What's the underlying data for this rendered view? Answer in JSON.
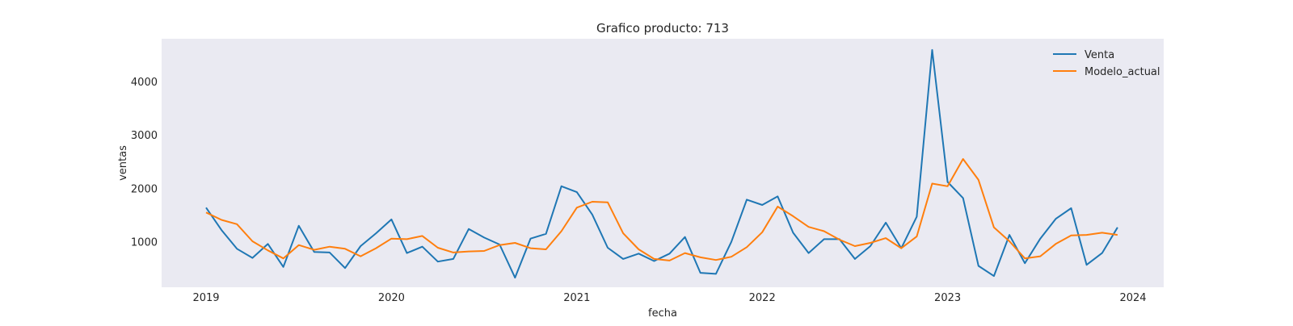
{
  "chart_data": {
    "type": "line",
    "title": "Grafico producto: 713",
    "xlabel": "fecha",
    "ylabel": "ventas",
    "x_ticks": [
      "2019",
      "2020",
      "2021",
      "2022",
      "2023",
      "2024"
    ],
    "y_ticks": [
      "1000",
      "2000",
      "3000",
      "4000"
    ],
    "grid": false,
    "legend_placement": "top-right",
    "plot_background": "#eaeaf2",
    "x": [
      "2019-01",
      "2019-02",
      "2019-03",
      "2019-04",
      "2019-05",
      "2019-06",
      "2019-07",
      "2019-08",
      "2019-09",
      "2019-10",
      "2019-11",
      "2019-12",
      "2020-01",
      "2020-02",
      "2020-03",
      "2020-04",
      "2020-05",
      "2020-06",
      "2020-07",
      "2020-08",
      "2020-09",
      "2020-10",
      "2020-11",
      "2020-12",
      "2021-01",
      "2021-02",
      "2021-03",
      "2021-04",
      "2021-05",
      "2021-06",
      "2021-07",
      "2021-08",
      "2021-09",
      "2021-10",
      "2021-11",
      "2021-12",
      "2022-01",
      "2022-02",
      "2022-03",
      "2022-04",
      "2022-05",
      "2022-06",
      "2022-07",
      "2022-08",
      "2022-09",
      "2022-10",
      "2022-11",
      "2022-12",
      "2023-01",
      "2023-02",
      "2023-03",
      "2023-04",
      "2023-05",
      "2023-06",
      "2023-07",
      "2023-08",
      "2023-09",
      "2023-10",
      "2023-11",
      "2023-12"
    ],
    "series": [
      {
        "name": "Venta",
        "color": "#1f77b4",
        "values": [
          1640,
          1220,
          870,
          700,
          960,
          530,
          1300,
          810,
          800,
          510,
          920,
          1160,
          1420,
          790,
          910,
          630,
          680,
          1240,
          1080,
          950,
          330,
          1060,
          1150,
          2040,
          1930,
          1510,
          890,
          680,
          780,
          640,
          780,
          1090,
          420,
          400,
          1000,
          1790,
          1690,
          1850,
          1170,
          790,
          1050,
          1050,
          680,
          920,
          1360,
          880,
          1470,
          4590,
          2120,
          1820,
          550,
          360,
          1130,
          600,
          1060,
          1430,
          1630,
          570,
          790,
          1270
        ]
      },
      {
        "name": "Modelo_actual",
        "color": "#ff7f0e",
        "values": [
          1550,
          1410,
          1330,
          1010,
          840,
          690,
          940,
          850,
          910,
          870,
          730,
          880,
          1060,
          1050,
          1110,
          890,
          800,
          820,
          830,
          940,
          980,
          880,
          860,
          1200,
          1640,
          1750,
          1740,
          1160,
          860,
          680,
          650,
          790,
          710,
          660,
          720,
          900,
          1180,
          1660,
          1480,
          1280,
          1200,
          1040,
          920,
          980,
          1070,
          880,
          1100,
          2090,
          2040,
          2550,
          2160,
          1270,
          1010,
          690,
          730,
          960,
          1120,
          1130,
          1170,
          1130
        ]
      }
    ],
    "ylim": [
      150,
      4800
    ]
  }
}
